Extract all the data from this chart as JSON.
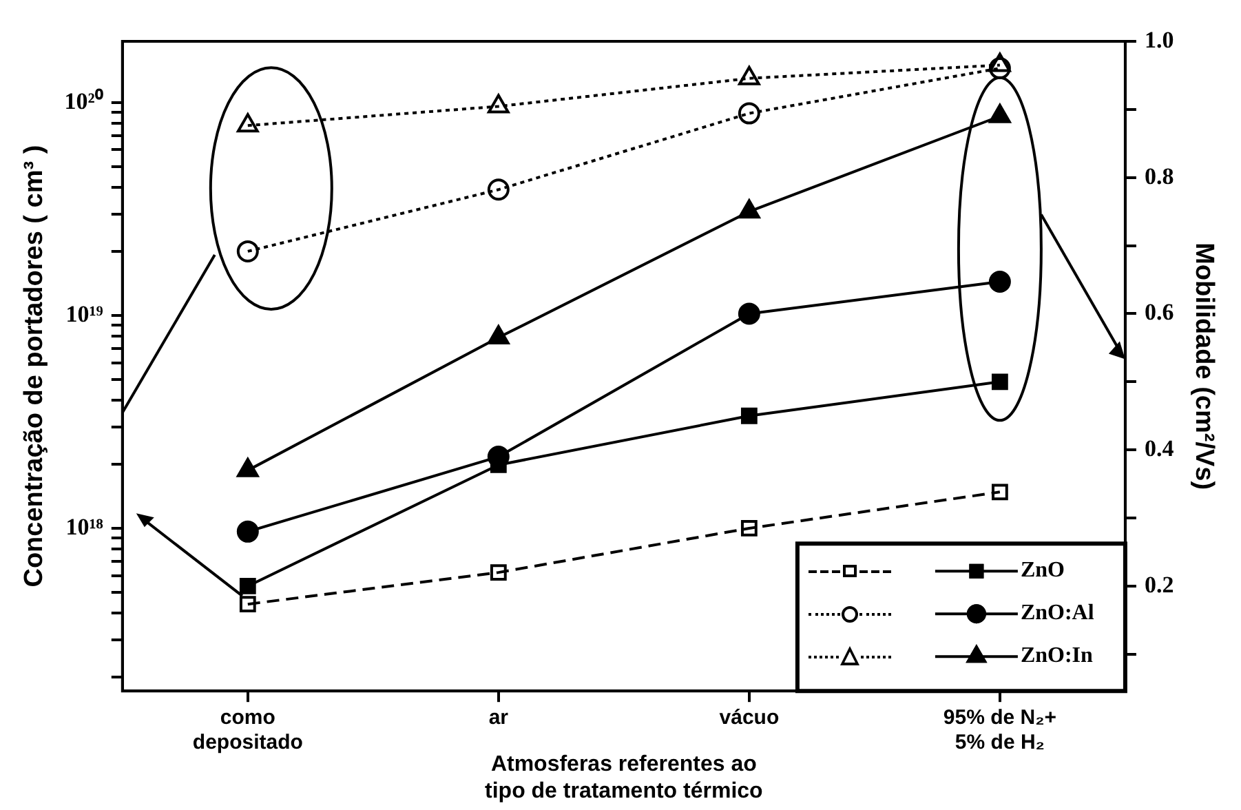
{
  "chart_data": {
    "type": "line",
    "xlabel": "Atmosferas referentes ao\ntipo de tratamento térmico",
    "ylabel": "Concentração de portadores ( cm³ )",
    "y2label": "Mobilidade (cm²/Vs)",
    "categories": [
      "como\ndepositado",
      "ar",
      "vácuo",
      "95% de N₂+\n5% de H₂"
    ],
    "log": "y",
    "legend": "bottom right",
    "grid": false,
    "ylim": [
      1.72e+17,
      1.94e+20
    ],
    "yticks": [
      {
        "value": 2e+17,
        "label": null
      },
      {
        "value": 3e+17,
        "label": null
      },
      {
        "value": 4e+17,
        "label": null
      },
      {
        "value": 5e+17,
        "label": null
      },
      {
        "value": 6e+17,
        "label": null
      },
      {
        "value": 7e+17,
        "label": null
      },
      {
        "value": 8e+17,
        "label": null
      },
      {
        "value": 9e+17,
        "label": null
      },
      {
        "value": 1e+18,
        "label": "10¹⁸"
      },
      {
        "value": 2e+18,
        "label": null
      },
      {
        "value": 3e+18,
        "label": null
      },
      {
        "value": 4e+18,
        "label": null
      },
      {
        "value": 5e+18,
        "label": null
      },
      {
        "value": 6e+18,
        "label": null
      },
      {
        "value": 7e+18,
        "label": null
      },
      {
        "value": 8e+18,
        "label": null
      },
      {
        "value": 9e+18,
        "label": null
      },
      {
        "value": 1e+19,
        "label": "10¹⁹"
      },
      {
        "value": 2e+19,
        "label": null
      },
      {
        "value": 3e+19,
        "label": null
      },
      {
        "value": 4e+19,
        "label": null
      },
      {
        "value": 5e+19,
        "label": null
      },
      {
        "value": 6e+19,
        "label": null
      },
      {
        "value": 7e+19,
        "label": null
      },
      {
        "value": 8e+19,
        "label": null
      },
      {
        "value": 9e+19,
        "label": null
      },
      {
        "value": 1e+20,
        "label": "10²⁰"
      }
    ],
    "y2lim": [
      0.046,
      1.0
    ],
    "y2ticks": [
      {
        "value": 0.1,
        "label": null
      },
      0.2,
      {
        "value": 0.3,
        "label": null
      },
      0.4,
      {
        "value": 0.5,
        "label": null
      },
      0.6,
      {
        "value": 0.7,
        "label": null
      },
      0.8,
      {
        "value": 0.9,
        "label": null
      },
      {
        "value": 1.0,
        "label": "1.0"
      }
    ],
    "series": [
      {
        "color": "#000000",
        "marker": "square",
        "line_style": "dashed",
        "values": [
          4.4e+17,
          6.2e+17,
          1e+18,
          1.48e+18
        ]
      },
      {
        "color": "#000000",
        "marker": "circle",
        "line_style": "dotted",
        "values": [
          2e+19,
          3.9e+19,
          8.9e+19,
          1.45e+20
        ]
      },
      {
        "color": "#000000",
        "marker": "triangle",
        "line_style": "dotted",
        "values": [
          7.8e+19,
          9.6e+19,
          1.3e+20,
          1.5e+20
        ]
      },
      {
        "name": "ZnO",
        "color": "#000000",
        "marker": "square",
        "axis": "y2",
        "line_style": "solid",
        "values": [
          0.2,
          0.378,
          0.45,
          0.5
        ]
      },
      {
        "name": "ZnO:Al",
        "color": "#000000",
        "marker": "circle",
        "axis": "y2",
        "line_style": "solid",
        "values": [
          0.28,
          0.39,
          0.6,
          0.647
        ]
      },
      {
        "name": "ZnO:In",
        "color": "#000000",
        "marker": "triangle",
        "axis": "y2",
        "line_style": "solid",
        "values": [
          0.37,
          0.565,
          0.75,
          0.89
        ]
      }
    ]
  }
}
